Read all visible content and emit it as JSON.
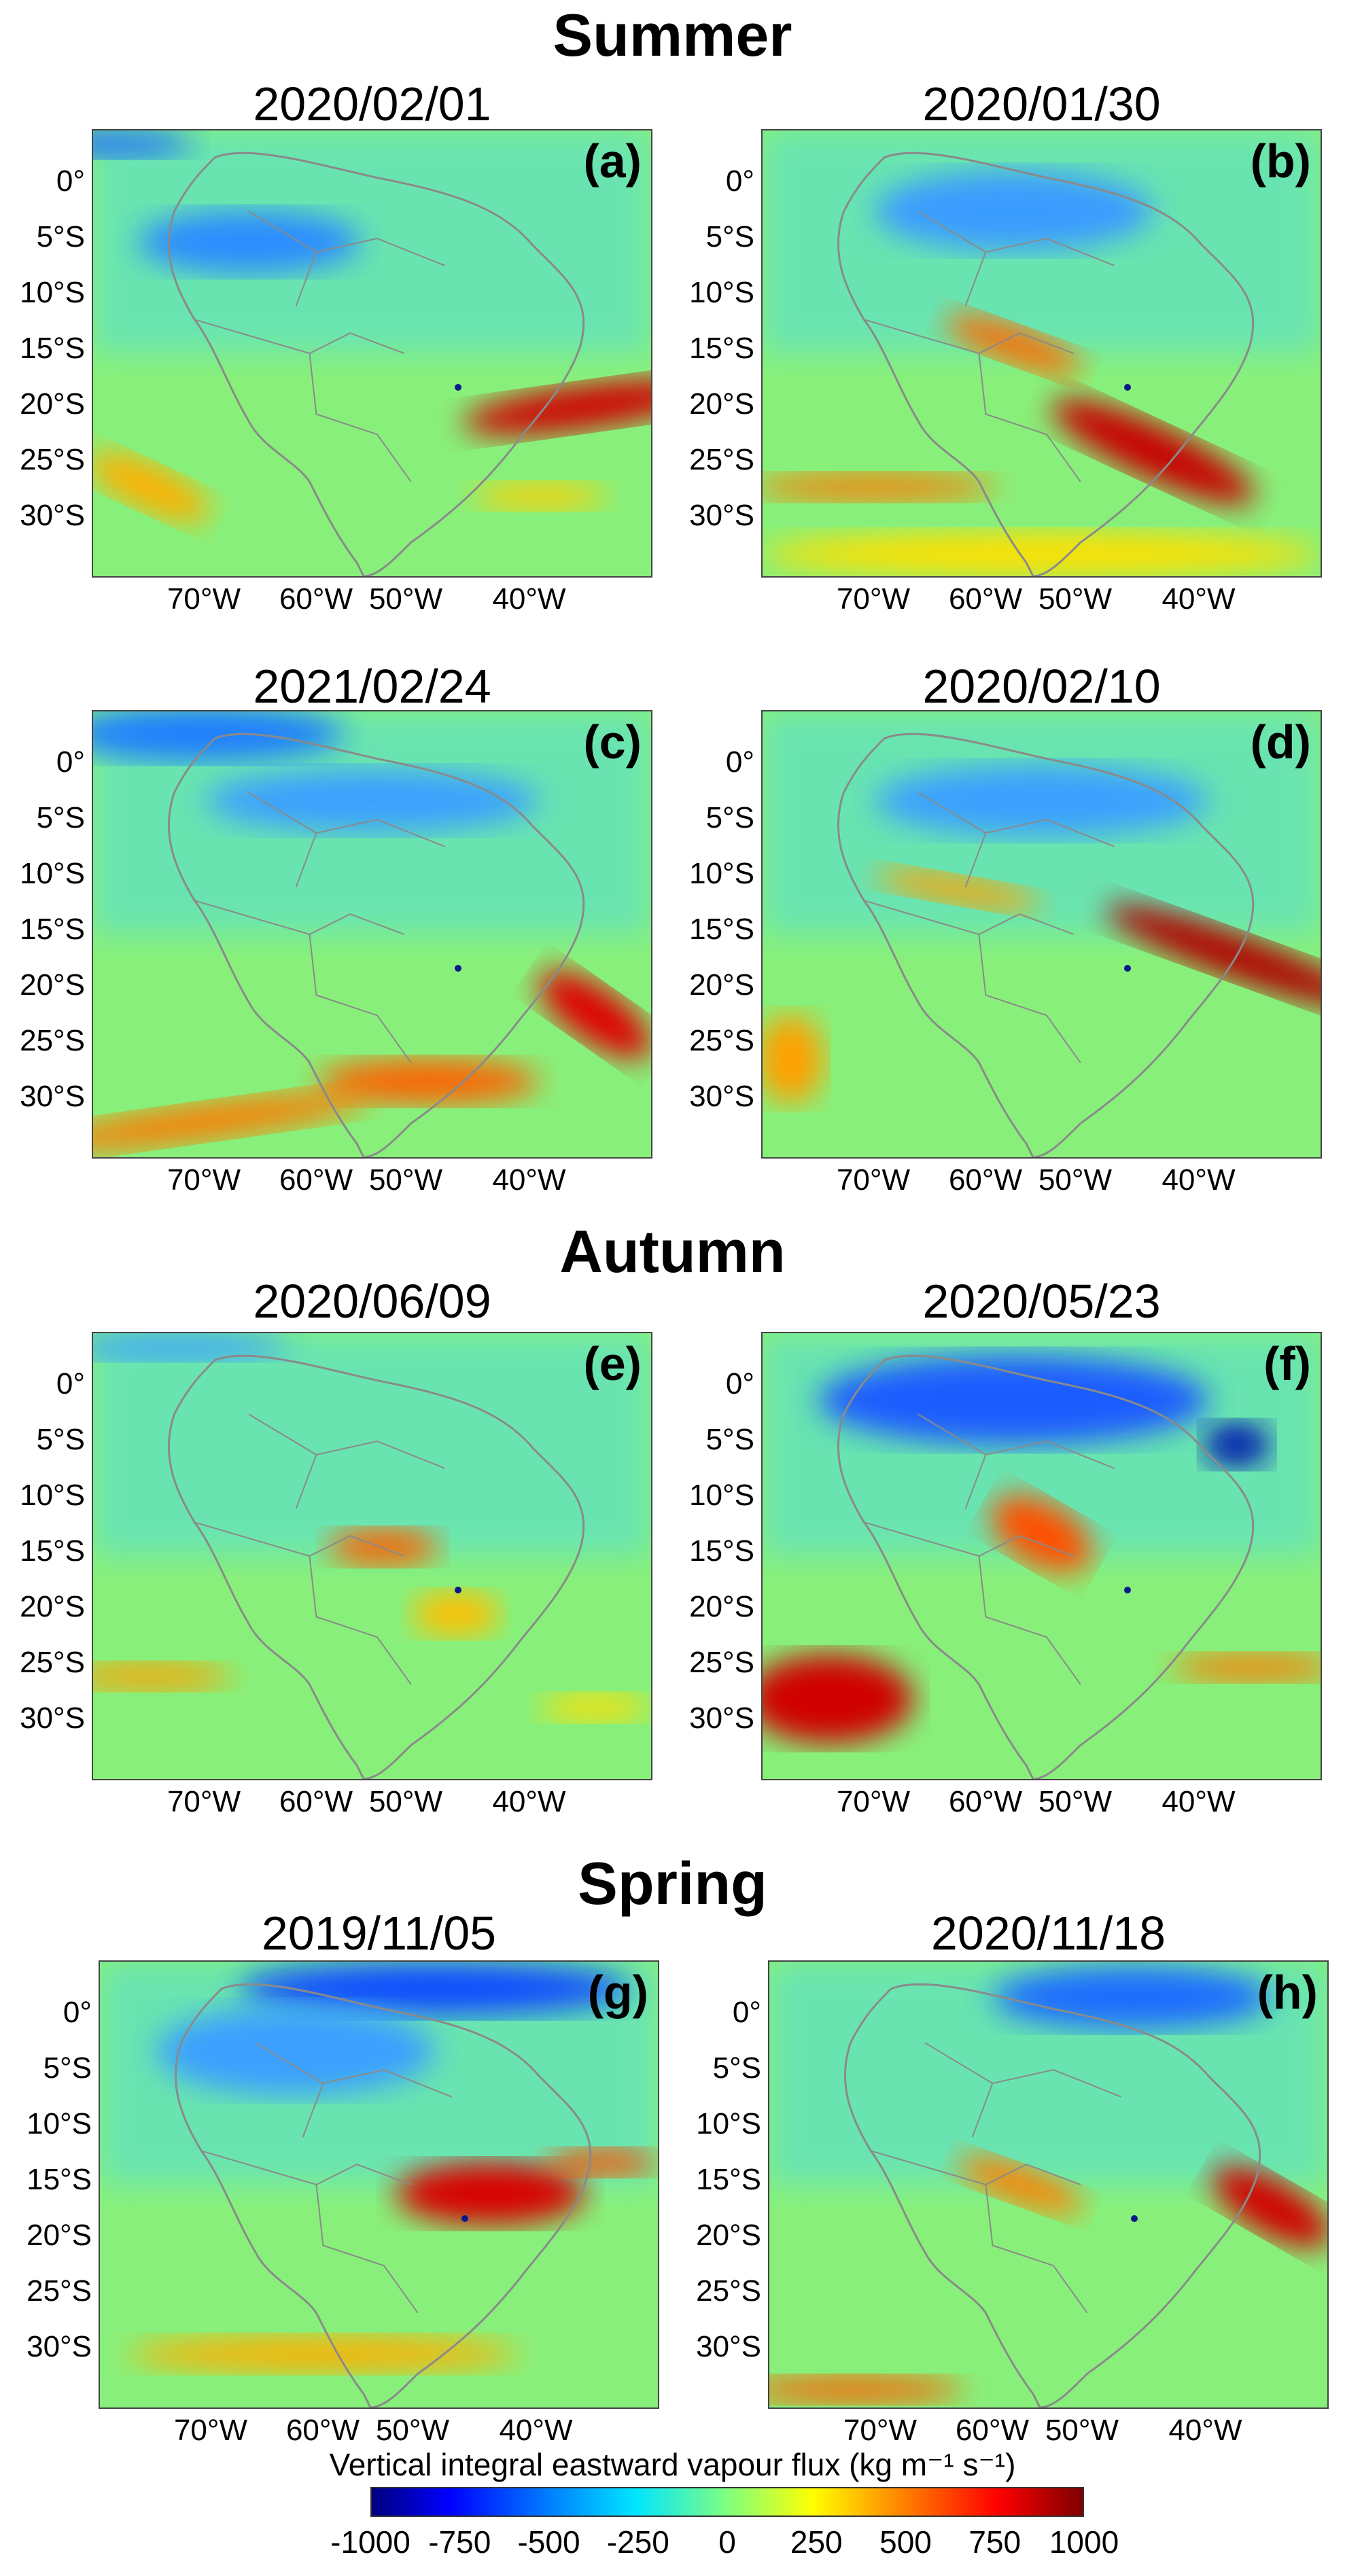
{
  "seasons": {
    "summer": "Summer",
    "autumn": "Autumn",
    "spring": "Spring"
  },
  "panels": [
    {
      "id": "a",
      "letter": "(a)",
      "date": "2020/02/01"
    },
    {
      "id": "b",
      "letter": "(b)",
      "date": "2020/01/30"
    },
    {
      "id": "c",
      "letter": "(c)",
      "date": "2021/02/24"
    },
    {
      "id": "d",
      "letter": "(d)",
      "date": "2020/02/10"
    },
    {
      "id": "e",
      "letter": "(e)",
      "date": "2020/06/09"
    },
    {
      "id": "f",
      "letter": "(f)",
      "date": "2020/05/23"
    },
    {
      "id": "g",
      "letter": "(g)",
      "date": "2019/11/05"
    },
    {
      "id": "h",
      "letter": "(h)",
      "date": "2020/11/18"
    }
  ],
  "lat_labels": [
    "0°",
    "5°S",
    "10°S",
    "15°S",
    "20°S",
    "25°S",
    "30°S"
  ],
  "lon_labels": [
    "70°W",
    "60°W",
    "50°W",
    "40°W"
  ],
  "colorbar": {
    "title": "Vertical integral eastward vapour flux (kg m⁻¹ s⁻¹)",
    "ticks": [
      "-1000",
      "-750",
      "-500",
      "-250",
      "0",
      "250",
      "500",
      "750",
      "1000"
    ],
    "range": [
      -1000,
      1000
    ],
    "colormap": "jet"
  }
}
